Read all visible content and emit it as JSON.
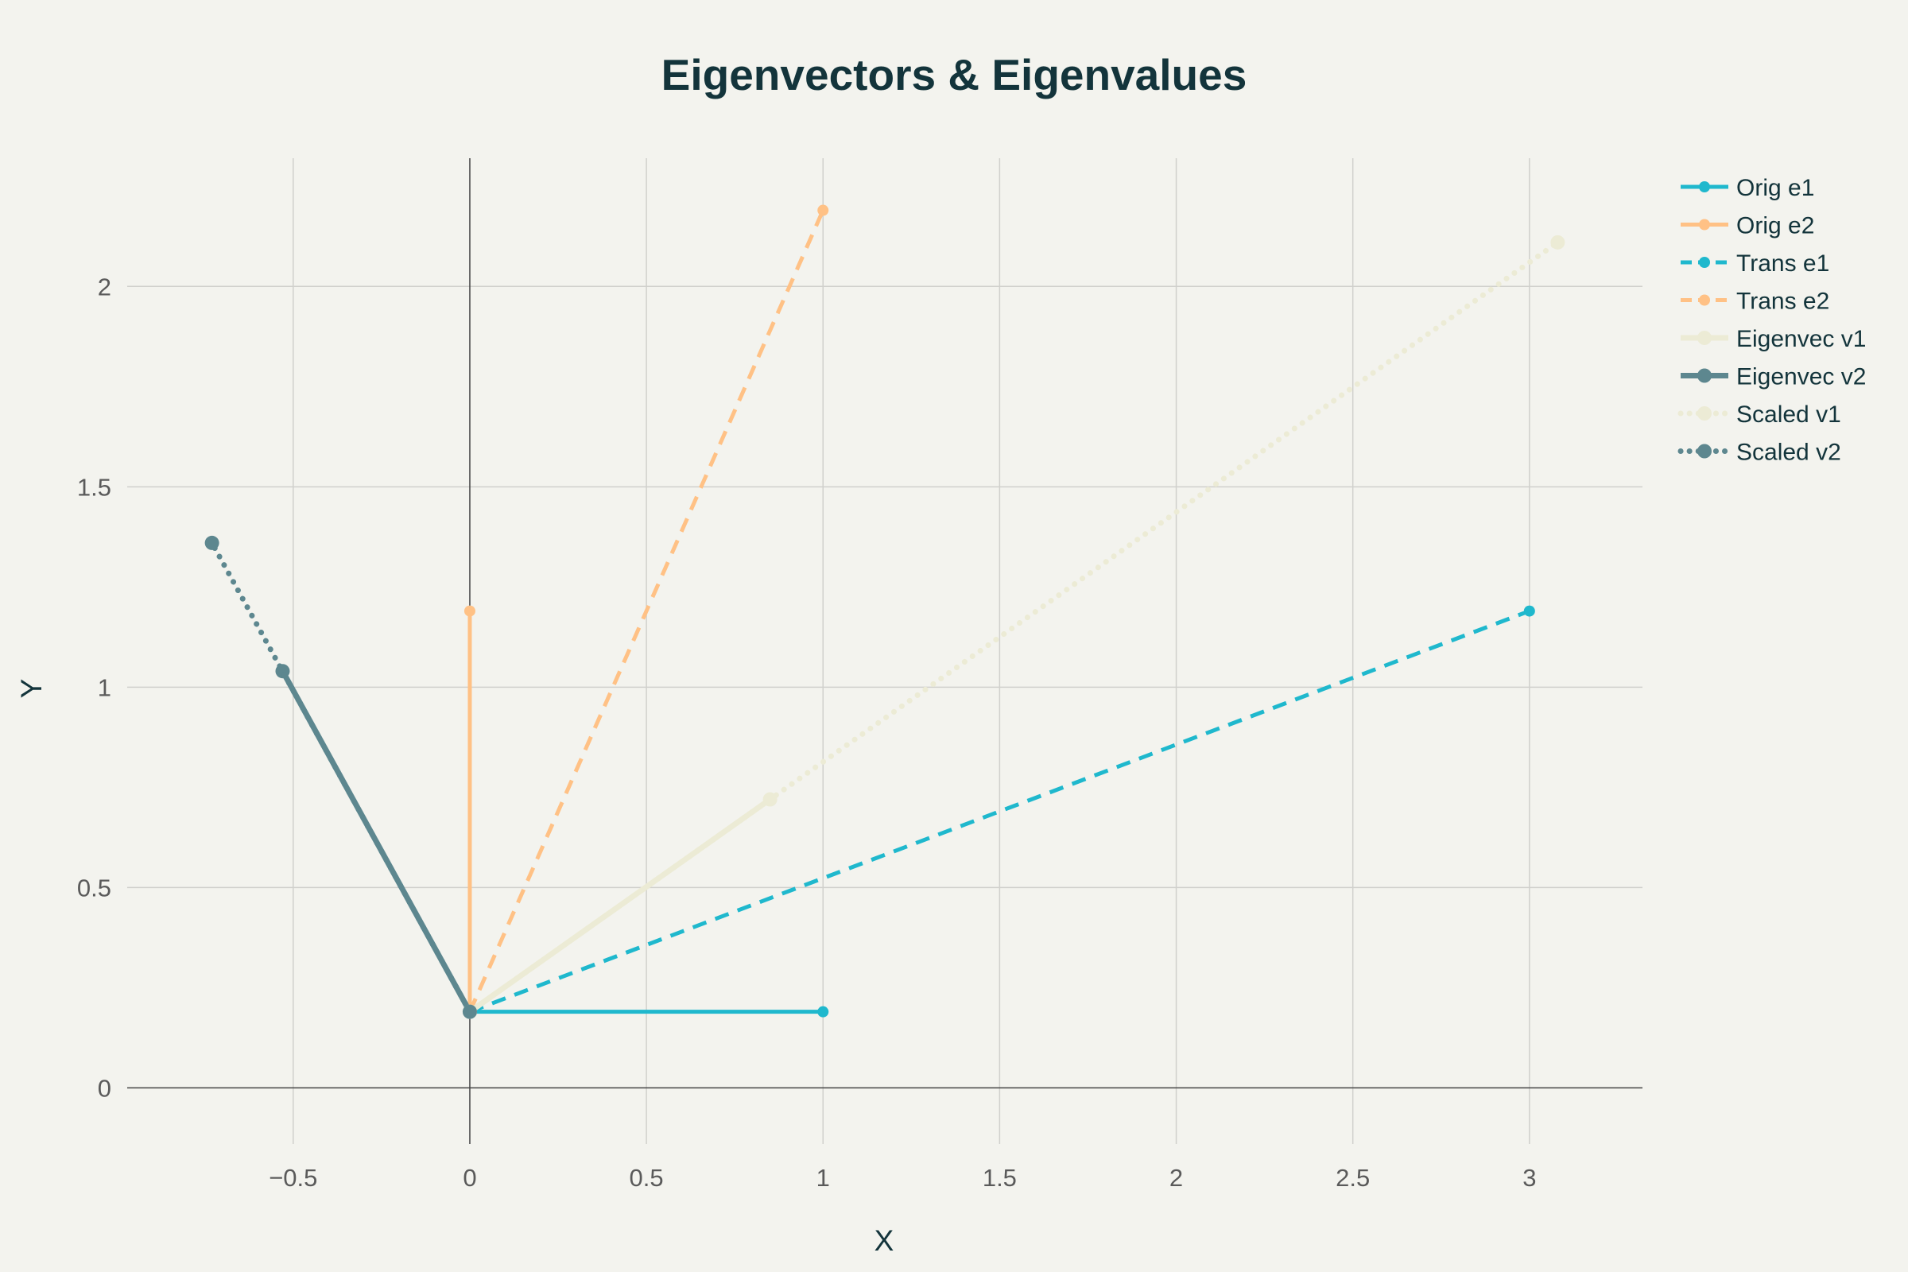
{
  "chart_data": {
    "type": "line",
    "title": "Eigenvectors & Eigenvalues",
    "xlabel": "X",
    "ylabel": "Y",
    "xlim": [
      -0.97,
      3.32
    ],
    "ylim": [
      -0.14,
      2.32
    ],
    "x_ticks": [
      -0.5,
      0,
      0.5,
      1,
      1.5,
      2,
      2.5,
      3
    ],
    "x_tick_labels": [
      "−0.5",
      "0",
      "0.5",
      "1",
      "1.5",
      "2",
      "2.5",
      "3"
    ],
    "y_ticks": [
      0,
      0.5,
      1,
      1.5,
      2
    ],
    "y_tick_labels": [
      "0",
      "0.5",
      "1",
      "1.5",
      "2"
    ],
    "grid": true,
    "legend_position": "top-right",
    "series": [
      {
        "name": "Orig e1",
        "x": [
          0,
          1
        ],
        "y": [
          0.19,
          0.19
        ],
        "color": "#1fb8cd",
        "dash": "solid"
      },
      {
        "name": "Orig e2",
        "x": [
          0,
          0
        ],
        "y": [
          0.19,
          1.19
        ],
        "color": "#ffc185",
        "dash": "solid"
      },
      {
        "name": "Trans e1",
        "x": [
          0,
          3
        ],
        "y": [
          0.19,
          1.19
        ],
        "color": "#1fb8cd",
        "dash": "dash"
      },
      {
        "name": "Trans e2",
        "x": [
          0,
          1
        ],
        "y": [
          0.19,
          2.19
        ],
        "color": "#ffc185",
        "dash": "dash"
      },
      {
        "name": "Eigenvec v1",
        "x": [
          0,
          0.85
        ],
        "y": [
          0.19,
          0.72
        ],
        "color": "#ecebd5",
        "dash": "solid"
      },
      {
        "name": "Eigenvec v2",
        "x": [
          0,
          -0.53
        ],
        "y": [
          0.19,
          1.04
        ],
        "color": "#5d878f",
        "dash": "solid"
      },
      {
        "name": "Scaled v1",
        "x": [
          0,
          3.08
        ],
        "y": [
          0.19,
          2.11
        ],
        "color": "#ecebd5",
        "dash": "dot"
      },
      {
        "name": "Scaled v2",
        "x": [
          0,
          -0.73
        ],
        "y": [
          0.19,
          1.36
        ],
        "color": "#5d878f",
        "dash": "dot"
      }
    ]
  }
}
